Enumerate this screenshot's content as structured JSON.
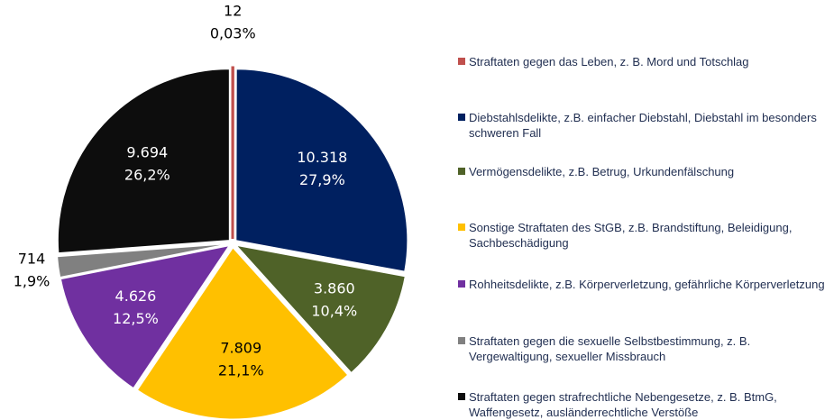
{
  "chart_data": {
    "type": "pie",
    "categories": [
      "Straftaten gegen das Leben, z. B. Mord und Totschlag",
      "Diebstahlsdelikte, z.B. einfacher Diebstahl, Diebstahl im besonders schweren Fall",
      "Vermögensdelikte, z.B. Betrug, Urkundenfälschung",
      "Sonstige Straftaten des StGB, z.B. Brandstiftung, Beleidigung, Sachbeschädigung",
      "Rohheitsdelikte, z.B. Körperverletzung, gefährliche Körperverletzung",
      "Straftaten gegen die sexuelle Selbstbestimmung, z. B. Vergewaltigung, sexueller Missbrauch",
      "Straftaten gegen strafrechtliche Nebengesetze, z. B. BtmG, Waffengesetz, ausländerrechtliche Verstöße"
    ],
    "values": [
      12,
      10318,
      3860,
      7809,
      4626,
      714,
      9694
    ],
    "value_labels": [
      "12",
      "10.318",
      "3.860",
      "7.809",
      "4.626",
      "714",
      "9.694"
    ],
    "percentages": [
      0.03,
      27.9,
      10.4,
      21.1,
      12.5,
      1.9,
      26.2
    ],
    "percentage_labels": [
      "0,03%",
      "27,9%",
      "10,4%",
      "21,1%",
      "12,5%",
      "1,9%",
      "26,2%"
    ],
    "colors": [
      "#c0504d",
      "#002060",
      "#4f6228",
      "#ffc000",
      "#7030a0",
      "#808080",
      "#0d0d0d"
    ],
    "legend": "right"
  }
}
